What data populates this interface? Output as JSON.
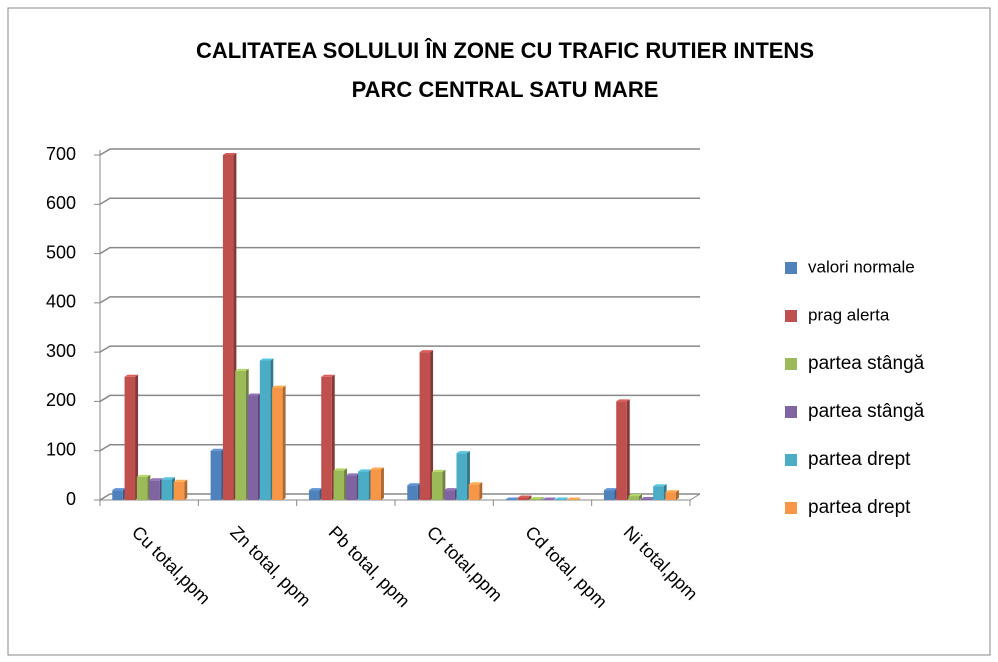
{
  "chart_data": {
    "type": "bar",
    "title": [
      "CALITATEA SOLULUI ÎN ZONE CU TRAFIC RUTIER INTENS",
      "PARC CENTRAL  SATU MARE"
    ],
    "categories": [
      "Cu total,ppm",
      "Zn total, ppm",
      "Pb total, ppm",
      "Cr total,ppm",
      "Cd total, ppm",
      "Ni total,ppm"
    ],
    "series": [
      {
        "name": "valori normale",
        "color": "#4f81bd",
        "values": [
          20,
          100,
          20,
          30,
          1,
          20
        ]
      },
      {
        "name": "prag alerta",
        "color": "#c0504d",
        "values": [
          250,
          700,
          250,
          300,
          5,
          200
        ]
      },
      {
        "name": "partea stângă",
        "color": "#9bbb59",
        "values": [
          47,
          262,
          60,
          57,
          2,
          8
        ]
      },
      {
        "name": "partea stângă",
        "color": "#8064a2",
        "values": [
          40,
          212,
          50,
          20,
          1,
          2
        ]
      },
      {
        "name": "partea drept",
        "color": "#4bacc6",
        "values": [
          42,
          283,
          58,
          95,
          1,
          28
        ]
      },
      {
        "name": "partea drept",
        "color": "#f79646",
        "values": [
          37,
          228,
          62,
          32,
          1,
          16
        ]
      }
    ],
    "ylim": [
      0,
      700
    ],
    "yticks": [
      0,
      100,
      200,
      300,
      400,
      500,
      600,
      700
    ],
    "grid": true,
    "legend": "right"
  }
}
